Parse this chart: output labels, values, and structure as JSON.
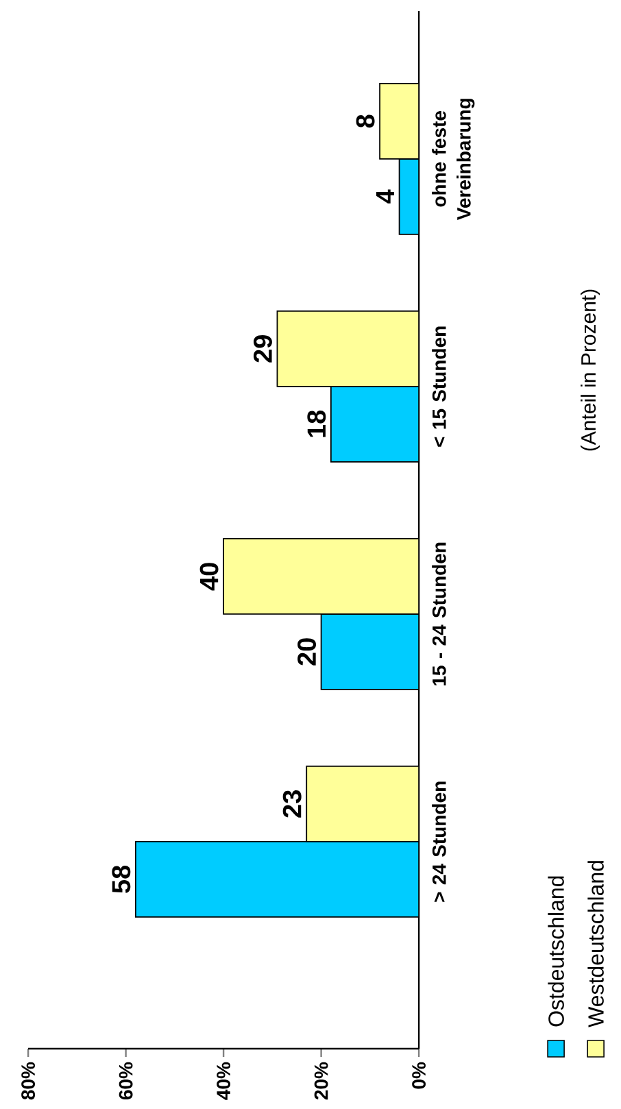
{
  "chart_data": {
    "type": "bar",
    "orientation": "horizontal",
    "title": "(Anteil in Prozent)",
    "categories": [
      "ohne feste Vereinbarung",
      "< 15 Stunden",
      "15 - 24 Stunden",
      "> 24 Stunden"
    ],
    "series": [
      {
        "name": "Ostdeutschland",
        "color": "#00ccff",
        "values": [
          4,
          18,
          20,
          58
        ]
      },
      {
        "name": "Westdeutschland",
        "color": "#ffff99",
        "values": [
          8,
          29,
          40,
          23
        ]
      }
    ],
    "xlim": [
      80,
      0
    ],
    "xticks": [
      {
        "value": 80,
        "label": "80%"
      },
      {
        "value": 60,
        "label": "60%"
      },
      {
        "value": 40,
        "label": "40%"
      },
      {
        "value": 20,
        "label": "20%"
      },
      {
        "value": 0,
        "label": "0%"
      }
    ],
    "data_labels": true,
    "legend": "bottom right"
  }
}
